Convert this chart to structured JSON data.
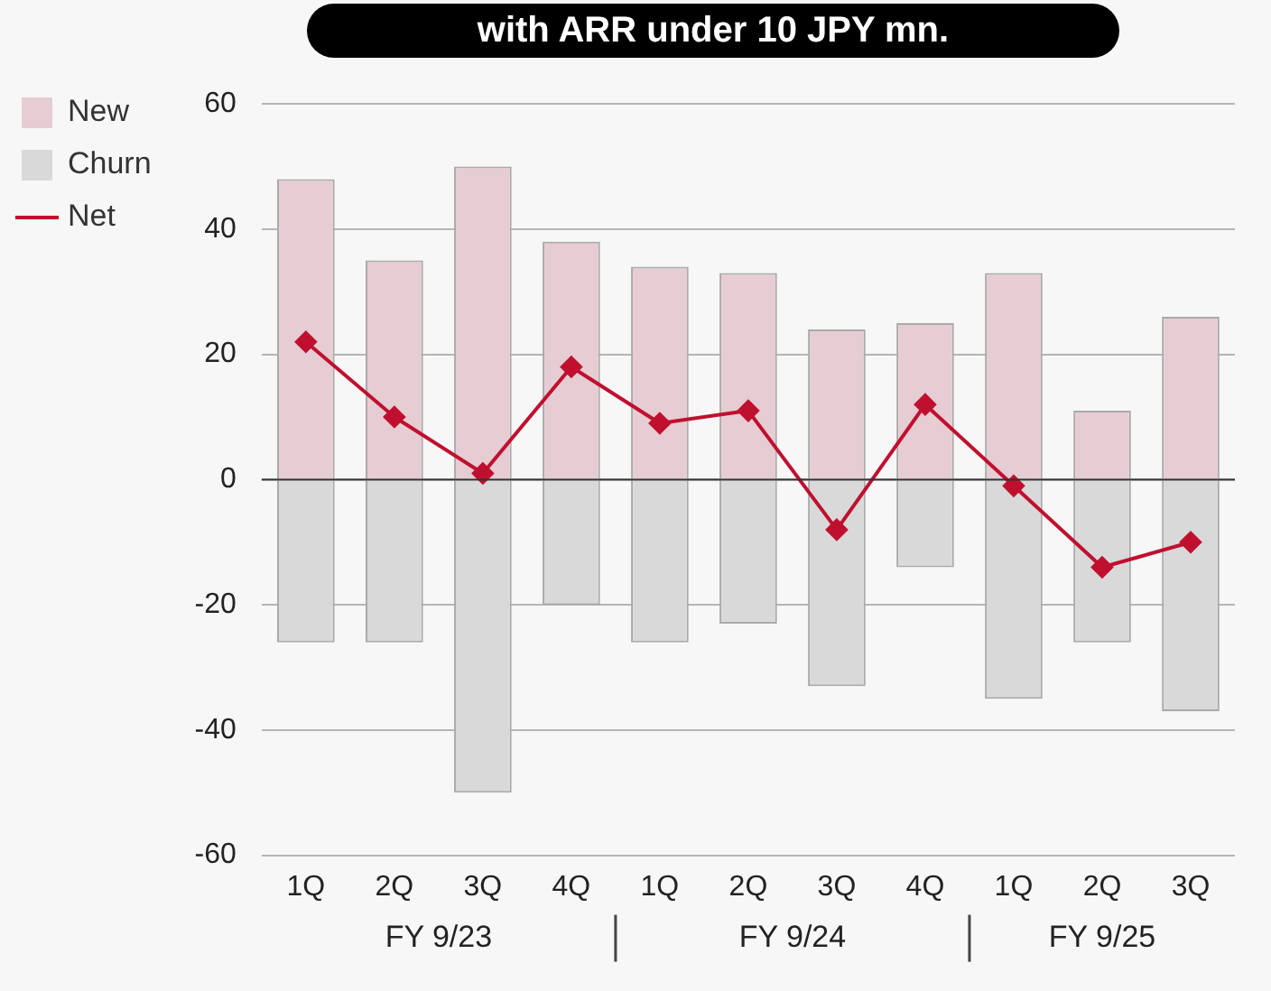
{
  "chart_data": {
    "type": "bar",
    "title": "with ARR under 10 JPY mn.",
    "categories": [
      "1Q",
      "2Q",
      "3Q",
      "4Q",
      "1Q",
      "2Q",
      "3Q",
      "4Q",
      "1Q",
      "2Q",
      "3Q"
    ],
    "series": [
      {
        "name": "New",
        "color": "#e6ccd3",
        "values": [
          48,
          35,
          50,
          38,
          34,
          33,
          24,
          25,
          33,
          11,
          26
        ]
      },
      {
        "name": "Churn",
        "color": "#d9d9d9",
        "values": [
          -26,
          -26,
          -50,
          -20,
          -26,
          -23,
          -33,
          -14,
          -35,
          -26,
          -37
        ]
      },
      {
        "name": "Net",
        "type": "line",
        "color": "#c0102f",
        "values": [
          22,
          10,
          1,
          18,
          9,
          11,
          -8,
          12,
          -1,
          -14,
          -10
        ]
      }
    ],
    "stacked": true,
    "marker": "diamond",
    "ylim": [
      -60,
      60
    ],
    "yticks": [
      -60,
      -40,
      -20,
      0,
      20,
      40,
      60
    ],
    "grid": "y",
    "legend": "top left",
    "ref_lines": [
      {
        "axis": "y",
        "value": 0,
        "color": "#333333"
      }
    ],
    "annotations": [
      "FY 9/23",
      "FY 9/24",
      "FY 9/25"
    ]
  }
}
